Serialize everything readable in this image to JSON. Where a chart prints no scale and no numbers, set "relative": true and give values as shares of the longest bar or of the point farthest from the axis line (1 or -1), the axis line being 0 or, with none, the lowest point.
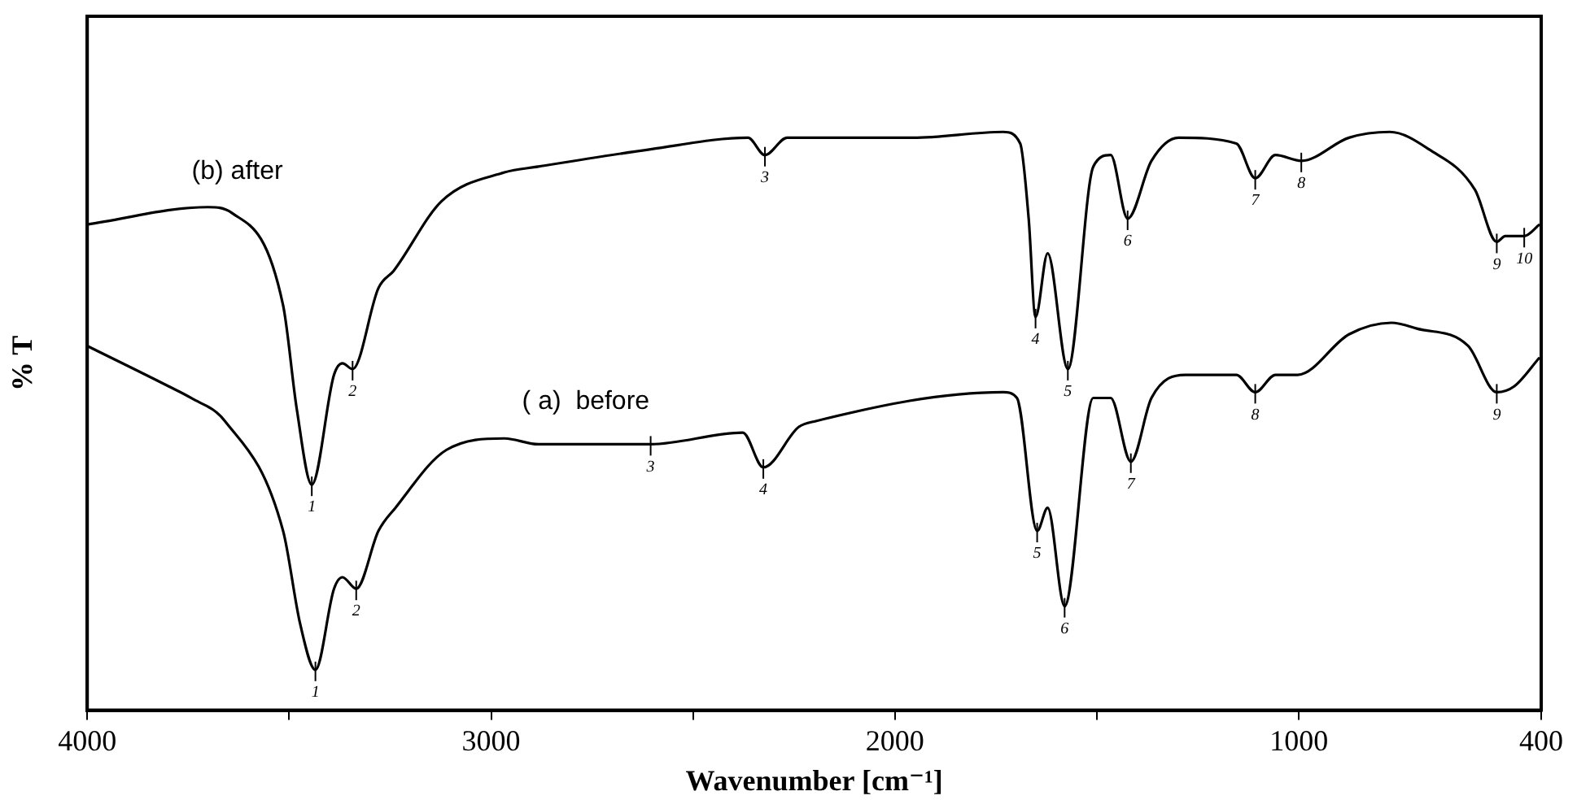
{
  "chart_data": {
    "type": "line",
    "relative": true,
    "xlabel": "Wavenumber [cm⁻¹]",
    "ylabel": "% T",
    "xlim": [
      4000,
      400
    ],
    "xticks": [
      4000,
      {
        "value": 3500,
        "label": null
      },
      3000,
      {
        "value": 2500,
        "label": null
      },
      2000,
      {
        "value": 1500,
        "label": null
      },
      1000,
      400
    ],
    "grid": false,
    "legend": false,
    "marker": "none",
    "line_style": "solid",
    "series": [
      {
        "name": "(b) after",
        "color": "#000000",
        "x": [
          4000,
          3701,
          3642,
          3515,
          3481,
          3444,
          3389,
          3368,
          3343,
          3279,
          3241,
          3123,
          2967,
          2883,
          2605,
          2364,
          2322,
          2267,
          2196,
          1955,
          1732,
          1690,
          1669,
          1652,
          1622,
          1572,
          1509,
          1466,
          1424,
          1365,
          1298,
          1155,
          1108,
          1058,
          994,
          876,
          775,
          678,
          564,
          510,
          489,
          442,
          404
        ],
        "values": [
          0.84,
          0.87,
          0.86,
          0.7,
          0.52,
          0.39,
          0.58,
          0.6,
          0.59,
          0.73,
          0.76,
          0.88,
          0.93,
          0.94,
          0.97,
          0.99,
          0.96,
          0.99,
          0.99,
          0.99,
          1.0,
          0.98,
          0.85,
          0.68,
          0.79,
          0.59,
          0.94,
          0.96,
          0.85,
          0.95,
          0.99,
          0.98,
          0.92,
          0.96,
          0.95,
          0.99,
          1.0,
          0.97,
          0.9,
          0.81,
          0.82,
          0.82,
          0.84
        ]
      },
      {
        "name": "( a)  before",
        "color": "#000000",
        "x": [
          4000,
          3798,
          3743,
          3659,
          3515,
          3473,
          3435,
          3389,
          3368,
          3334,
          3279,
          3237,
          3111,
          2967,
          2883,
          2605,
          2377,
          2326,
          2238,
          2196,
          1732,
          1698,
          1648,
          1622,
          1580,
          1509,
          1466,
          1416,
          1365,
          1281,
          1155,
          1108,
          1058,
          1003,
          876,
          771,
          708,
          581,
          510,
          467,
          404
        ],
        "values": [
          0.63,
          0.56,
          0.54,
          0.5,
          0.31,
          0.15,
          0.07,
          0.21,
          0.23,
          0.21,
          0.31,
          0.35,
          0.45,
          0.47,
          0.46,
          0.46,
          0.48,
          0.42,
          0.49,
          0.5,
          0.55,
          0.54,
          0.31,
          0.35,
          0.18,
          0.54,
          0.54,
          0.43,
          0.54,
          0.58,
          0.58,
          0.55,
          0.58,
          0.58,
          0.65,
          0.67,
          0.66,
          0.63,
          0.55,
          0.56,
          0.61
        ]
      }
    ],
    "annotations": [
      {
        "text": "1",
        "x": 3444,
        "y": 0.39
      },
      {
        "text": "2",
        "x": 3343,
        "y": 0.59
      },
      {
        "text": "3",
        "x": 2322,
        "y": 0.96
      },
      {
        "text": "4",
        "x": 1652,
        "y": 0.68
      },
      {
        "text": "5",
        "x": 1572,
        "y": 0.59
      },
      {
        "text": "6",
        "x": 1424,
        "y": 0.85
      },
      {
        "text": "7",
        "x": 1108,
        "y": 0.92
      },
      {
        "text": "8",
        "x": 994,
        "y": 0.95
      },
      {
        "text": "9",
        "x": 510,
        "y": 0.81
      },
      {
        "text": "10",
        "x": 442,
        "y": 0.82
      },
      {
        "text": "1",
        "x": 3435,
        "y": 0.07
      },
      {
        "text": "2",
        "x": 3334,
        "y": 0.21
      },
      {
        "text": "3",
        "x": 2605,
        "y": 0.46
      },
      {
        "text": "4",
        "x": 2326,
        "y": 0.42
      },
      {
        "text": "5",
        "x": 1648,
        "y": 0.31
      },
      {
        "text": "6",
        "x": 1580,
        "y": 0.18
      },
      {
        "text": "7",
        "x": 1416,
        "y": 0.43
      },
      {
        "text": "8",
        "x": 1108,
        "y": 0.55
      },
      {
        "text": "9",
        "x": 510,
        "y": 0.55
      }
    ]
  }
}
